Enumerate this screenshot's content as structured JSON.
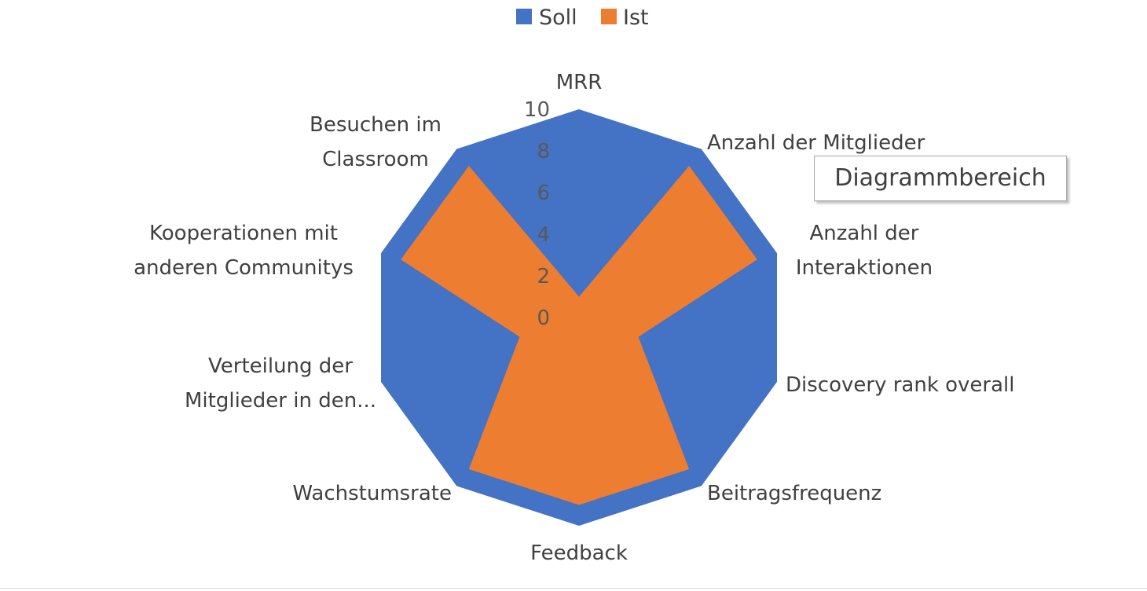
{
  "chart_data": {
    "type": "radar",
    "categories": [
      "MRR",
      "Anzahl der Mitglieder",
      [
        "Anzahl der",
        "Interaktionen"
      ],
      "Discovery rank overall",
      "Beitragsfrequenz",
      "Feedback",
      "Wachstumsrate",
      [
        "Verteilung der",
        "Mitglieder in den..."
      ],
      [
        "Kooperationen mit",
        "anderen Communitys"
      ],
      [
        "Besuchen im",
        "Classroom"
      ]
    ],
    "series": [
      {
        "name": "Soll",
        "color": "#4472C4",
        "values": [
          10,
          10,
          10,
          10,
          10,
          10,
          10,
          10,
          10,
          10
        ]
      },
      {
        "name": "Ist",
        "color": "#ED7D31",
        "values": [
          1,
          9,
          9,
          3,
          9,
          9,
          9,
          3,
          9,
          9
        ]
      }
    ],
    "rlim": [
      0,
      10
    ],
    "ticks": [
      "0",
      "2",
      "4",
      "6",
      "8",
      "10"
    ],
    "legend_position": "top"
  },
  "tooltip": "Diagrammbereich"
}
